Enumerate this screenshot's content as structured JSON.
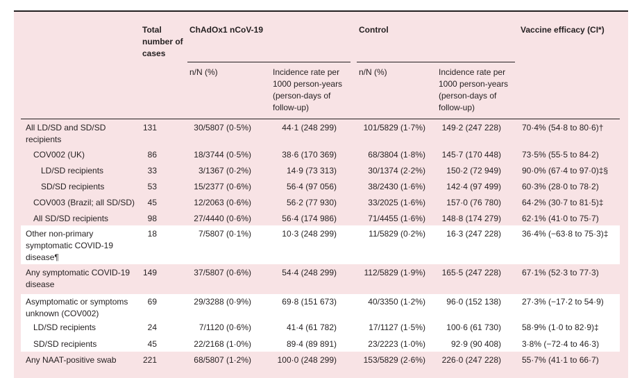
{
  "table": {
    "header": [
      "Total number of cases",
      "ChAdOx1 nCoV-19",
      "Control",
      "Vaccine efficacy (CI*)"
    ],
    "subheader": [
      "n/N (%)",
      "Incidence rate per 1000 person-years (person-days of follow-up)",
      "n/N (%)",
      "Incidence rate per 1000 person-years (person-days of follow-up)"
    ],
    "rows": [
      [
        "All LD/SD and SD/SD recipients",
        "131",
        "30/5807 (0·5%)",
        "44·1 (248 299)",
        "101/5829 (1·7%)",
        "149·2 (247 228)",
        "70·4% (54·8 to 80·6)†"
      ],
      [
        "COV002 (UK)",
        "86",
        "18/3744 (0·5%)",
        "38·6 (170 369)",
        "68/3804 (1·8%)",
        "145·7 (170 448)",
        "73·5% (55·5 to 84·2)"
      ],
      [
        "LD/SD recipients",
        "33",
        "3/1367 (0·2%)",
        "14·9 (73 313)",
        "30/1374 (2·2%)",
        "150·2 (72 949)",
        "90·0% (67·4 to 97·0)‡§"
      ],
      [
        "SD/SD recipients",
        "53",
        "15/2377 (0·6%)",
        "56·4 (97 056)",
        "38/2430 (1·6%)",
        "142·4 (97 499)",
        "60·3% (28·0 to 78·2)"
      ],
      [
        "COV003 (Brazil; all SD/SD)",
        "45",
        "12/2063 (0·6%)",
        "56·2 (77 930)",
        "33/2025 (1·6%)",
        "157·0 (76 780)",
        "64·2% (30·7 to 81·5)‡"
      ],
      [
        "All SD/SD recipients",
        "98",
        "27/4440 (0·6%)",
        "56·4 (174 986)",
        "71/4455 (1·6%)",
        "148·8 (174 279)",
        "62·1% (41·0 to 75·7)"
      ],
      [
        "Other non-primary symptomatic COVID-19 disease¶",
        "18",
        "7/5807 (0·1%)",
        "10·3 (248 299)",
        "11/5829 (0·2%)",
        "16·3 (247 228)",
        "36·4% (−63·8 to 75·3)‡"
      ],
      [
        "Any symptomatic COVID-19 disease",
        "149",
        "37/5807 (0·6%)",
        "54·4 (248 299)",
        "112/5829 (1·9%)",
        "165·5 (247 228)",
        "67·1% (52·3 to 77·3)"
      ],
      [
        "Asymptomatic or symptoms unknown (COV002)",
        "69",
        "29/3288 (0·9%)",
        "69·8 (151 673)",
        "40/3350 (1·2%)",
        "96·0 (152 138)",
        "27·3% (−17·2 to 54·9)"
      ],
      [
        "LD/SD recipients",
        "24",
        "7/1120 (0·6%)",
        "41·4 (61 782)",
        "17/1127 (1·5%)",
        "100·6 (61 730)",
        "58·9% (1·0 to 82·9)‡"
      ],
      [
        "SD/SD recipients",
        "45",
        "22/2168 (1·0%)",
        "89·4 (89 891)",
        "23/2223 (1·0%)",
        "92·9 (90 408)",
        "3·8% (−72·4 to 46·3)"
      ],
      [
        "Any NAAT-positive swab",
        "221",
        "68/5807 (1·2%)",
        "100·0 (248 299)",
        "153/5829 (2·6%)",
        "226·0 (247 228)",
        "55·7% (41·1 to 66·7)"
      ]
    ]
  }
}
